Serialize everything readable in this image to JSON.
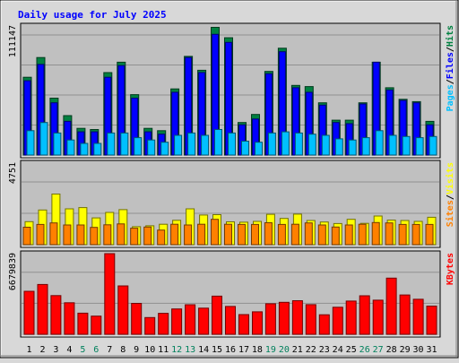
{
  "title": "Daily usage for July 2025",
  "colors": {
    "background": "#d8d8d8",
    "panel": "#c0c0c0",
    "title": "#0000ff",
    "hits": "#008040",
    "files": "#0000ff",
    "pages": "#00c0ff",
    "visits": "#ffff00",
    "sites": "#ff8000",
    "kbytes": "#ff0000",
    "weekend_label": "#00805c",
    "weekday_label": "#000000"
  },
  "chart_data": [
    {
      "type": "bar",
      "panel": "hits-files-pages",
      "ymax_label": "111147",
      "ymax": 111147,
      "right_label_parts": [
        "Pages",
        "/",
        "Files",
        "/",
        "Hits"
      ],
      "x": [
        "1",
        "2",
        "3",
        "4",
        "5",
        "6",
        "7",
        "8",
        "9",
        "10",
        "11",
        "12",
        "13",
        "14",
        "15",
        "16",
        "17",
        "18",
        "19",
        "20",
        "21",
        "22",
        "23",
        "24",
        "25",
        "26",
        "27",
        "28",
        "29",
        "30",
        "31"
      ],
      "series": [
        {
          "name": "Hits",
          "values": [
            67000,
            84000,
            49000,
            34000,
            23000,
            22000,
            71000,
            80000,
            52000,
            23000,
            21000,
            57000,
            85000,
            73000,
            110000,
            101000,
            28000,
            35000,
            72000,
            92000,
            60000,
            59000,
            45000,
            30000,
            30000,
            45000,
            80000,
            58000,
            48000,
            46000,
            29000
          ]
        },
        {
          "name": "Files",
          "values": [
            64000,
            78000,
            45000,
            29000,
            20000,
            20000,
            67000,
            77000,
            49000,
            20000,
            18000,
            54000,
            84000,
            71000,
            104000,
            97000,
            26000,
            31000,
            70000,
            89000,
            58000,
            54000,
            43000,
            28000,
            27000,
            44000,
            80000,
            56000,
            47000,
            45000,
            26000
          ]
        },
        {
          "name": "Pages",
          "values": [
            21000,
            28000,
            19000,
            13000,
            10000,
            10000,
            19000,
            19000,
            15000,
            13000,
            11000,
            17000,
            19000,
            17000,
            22000,
            19000,
            12000,
            11000,
            19000,
            20000,
            19000,
            18000,
            17000,
            14000,
            13000,
            15000,
            21000,
            17000,
            16000,
            15000,
            16000
          ]
        }
      ]
    },
    {
      "type": "bar",
      "panel": "visits-sites",
      "ymax_label": "4751",
      "ymax": 4751,
      "right_label_parts": [
        "Sites",
        "/",
        "Visits"
      ],
      "x": [
        "1",
        "2",
        "3",
        "4",
        "5",
        "6",
        "7",
        "8",
        "9",
        "10",
        "11",
        "12",
        "13",
        "14",
        "15",
        "16",
        "17",
        "18",
        "19",
        "20",
        "21",
        "22",
        "23",
        "24",
        "25",
        "26",
        "27",
        "28",
        "29",
        "30",
        "31"
      ],
      "series": [
        {
          "name": "Visits",
          "values": [
            1340,
            2020,
            2950,
            2090,
            2160,
            1560,
            1880,
            2040,
            1050,
            1100,
            1190,
            1420,
            2090,
            1730,
            1750,
            1330,
            1310,
            1360,
            1770,
            1530,
            1780,
            1410,
            1320,
            1230,
            1480,
            1240,
            1670,
            1430,
            1410,
            1360,
            1600
          ]
        },
        {
          "name": "Sites",
          "values": [
            1020,
            1180,
            1270,
            1150,
            1150,
            1010,
            1160,
            1210,
            960,
            1030,
            850,
            1190,
            1150,
            1190,
            1480,
            1190,
            1180,
            1180,
            1280,
            1180,
            1190,
            1270,
            1150,
            1030,
            1150,
            1190,
            1290,
            1270,
            1180,
            1180,
            1180
          ]
        }
      ]
    },
    {
      "type": "bar",
      "panel": "kbytes",
      "ymax_label": "6679839",
      "ymax": 6679839,
      "right_label_parts": [
        "KBytes"
      ],
      "x": [
        "1",
        "2",
        "3",
        "4",
        "5",
        "6",
        "7",
        "8",
        "9",
        "10",
        "11",
        "12",
        "13",
        "14",
        "15",
        "16",
        "17",
        "18",
        "19",
        "20",
        "21",
        "22",
        "23",
        "24",
        "25",
        "26",
        "27",
        "28",
        "29",
        "30",
        "31"
      ],
      "series": [
        {
          "name": "KBytes",
          "values": [
            3560000,
            4130000,
            3210000,
            2610000,
            1750000,
            1510000,
            6680000,
            4010000,
            2560000,
            1390000,
            1740000,
            2100000,
            2450000,
            2170000,
            3160000,
            2310000,
            1630000,
            1860000,
            2530000,
            2650000,
            2780000,
            2460000,
            1620000,
            2240000,
            2750000,
            3190000,
            2830000,
            4650000,
            3260000,
            2900000,
            2340000
          ]
        }
      ]
    }
  ]
}
